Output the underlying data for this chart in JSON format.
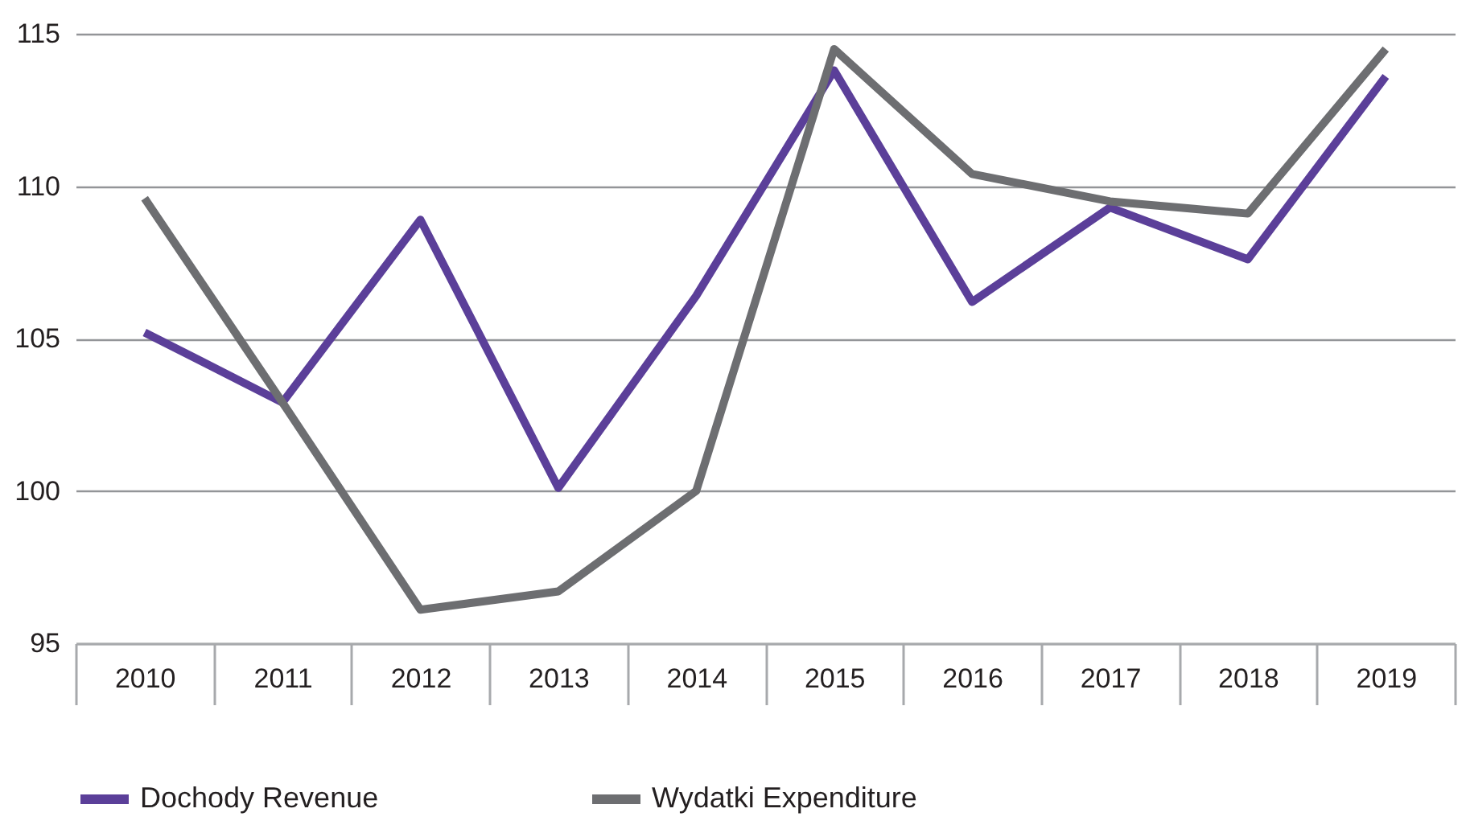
{
  "chart_data": {
    "type": "line",
    "categories": [
      "2010",
      "2011",
      "2012",
      "2013",
      "2014",
      "2015",
      "2016",
      "2017",
      "2018",
      "2019"
    ],
    "series": [
      {
        "name": "Dochody Revenue",
        "color": "#5b3f99",
        "values": [
          105.2,
          102.9,
          108.9,
          100.1,
          106.4,
          113.8,
          106.2,
          109.3,
          107.6,
          113.6
        ]
      },
      {
        "name": "Wydatki Expenditure",
        "color": "#6d6e71",
        "values": [
          109.6,
          102.9,
          96.1,
          96.7,
          100.0,
          114.5,
          110.4,
          109.5,
          109.1,
          114.5
        ]
      }
    ],
    "ylim": [
      95,
      115
    ],
    "yticks": [
      95,
      100,
      105,
      110,
      115
    ],
    "grid": "y",
    "legend": "bottom",
    "marker": "none",
    "line_style": "solid"
  }
}
